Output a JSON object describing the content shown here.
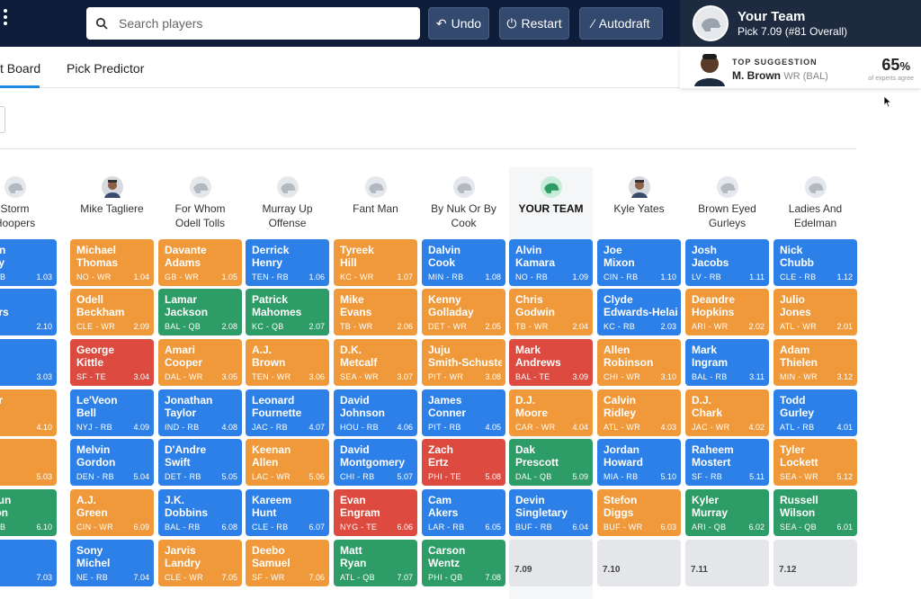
{
  "search": {
    "placeholder": "Search players"
  },
  "toolbar": {
    "undo": "Undo",
    "restart": "Restart",
    "autodraft": "Autodraft"
  },
  "my_team": {
    "title": "Your Team",
    "subtitle": "Pick 7.09 (#81 Overall)"
  },
  "tabs": [
    "t Board",
    "Pick Predictor"
  ],
  "suggestion": {
    "label": "TOP SUGGESTION",
    "name": "M. Brown",
    "pos": "WR (BAL)",
    "pct": "65",
    "pct_sym": "%",
    "agree": "of experts agree"
  },
  "colors": {
    "RB": "#2d80e8",
    "WR": "#f0993a",
    "QB": "#2e9c66",
    "TE": "#dd4a40"
  },
  "teams": [
    {
      "name1": "Storm",
      "name2": "Hoopers",
      "icon": "helmet"
    },
    {
      "name1": "Mike Tagliere",
      "name2": "",
      "icon": "person"
    },
    {
      "name1": "For Whom",
      "name2": "Odell Tolls",
      "icon": "helmet"
    },
    {
      "name1": "Murray Up",
      "name2": "Offense",
      "icon": "helmet"
    },
    {
      "name1": "Fant Man",
      "name2": "",
      "icon": "helmet"
    },
    {
      "name1": "By Nuk Or By",
      "name2": "Cook",
      "icon": "helmet"
    },
    {
      "name1": "YOUR TEAM",
      "name2": "",
      "icon": "myteam"
    },
    {
      "name1": "Kyle Yates",
      "name2": "",
      "icon": "person"
    },
    {
      "name1": "Brown Eyed",
      "name2": "Gurleys",
      "icon": "helmet"
    },
    {
      "name1": "Ladies And",
      "name2": "Edelman",
      "icon": "helmet"
    }
  ],
  "picks": [
    [
      [
        "quon",
        "rkley",
        "G - RB",
        "1.03",
        "RB"
      ],
      [
        "Michael",
        "Thomas",
        "NO - WR",
        "1.04",
        "WR"
      ],
      [
        "Davante",
        "Adams",
        "GB - WR",
        "1.05",
        "WR"
      ],
      [
        "Derrick",
        "Henry",
        "TEN - RB",
        "1.06",
        "RB"
      ],
      [
        "Tyreek",
        "Hill",
        "KC - WR",
        "1.07",
        "WR"
      ],
      [
        "Dalvin",
        "Cook",
        "MIN - RB",
        "1.08",
        "RB"
      ],
      [
        "Alvin",
        "Kamara",
        "NO - RB",
        "1.09",
        "RB"
      ],
      [
        "Joe",
        "Mixon",
        "CIN - RB",
        "1.10",
        "RB"
      ],
      [
        "Josh",
        "Jacobs",
        "LV - RB",
        "1.11",
        "RB"
      ],
      [
        "Nick",
        "Chubb",
        "CLE - RB",
        "1.12",
        "RB"
      ]
    ],
    [
      [
        "les",
        "nders",
        "",
        "2.10",
        "RB"
      ],
      [
        "Odell",
        "Beckham",
        "CLE - WR",
        "2.09",
        "WR"
      ],
      [
        "Lamar",
        "Jackson",
        "BAL - QB",
        "2.08",
        "QB"
      ],
      [
        "Patrick",
        "Mahomes",
        "KC - QB",
        "2.07",
        "QB"
      ],
      [
        "Mike",
        "Evans",
        "TB - WR",
        "2.06",
        "WR"
      ],
      [
        "Kenny",
        "Golladay",
        "DET - WR",
        "2.05",
        "WR"
      ],
      [
        "Chris",
        "Godwin",
        "TB - WR",
        "2.04",
        "WR"
      ],
      [
        "Clyde",
        "Edwards-Helaire",
        "KC - RB",
        "2.03",
        "RB"
      ],
      [
        "Deandre",
        "Hopkins",
        "ARI - WR",
        "2.02",
        "WR"
      ],
      [
        "Julio",
        "Jones",
        "ATL - WR",
        "2.01",
        "WR"
      ]
    ],
    [
      [
        "stin",
        "eler",
        "",
        "3.03",
        "RB"
      ],
      [
        "George",
        "Kittle",
        "SF - TE",
        "3.04",
        "TE"
      ],
      [
        "Amari",
        "Cooper",
        "DAL - WR",
        "3.05",
        "WR"
      ],
      [
        "A.J.",
        "Brown",
        "TEN - WR",
        "3.06",
        "WR"
      ],
      [
        "D.K.",
        "Metcalf",
        "SEA - WR",
        "3.07",
        "WR"
      ],
      [
        "Juju",
        "Smith-Schuster",
        "PIT - WR",
        "3.08",
        "WR"
      ],
      [
        "Mark",
        "Andrews",
        "BAL - TE",
        "3.09",
        "TE"
      ],
      [
        "Allen",
        "Robinson",
        "CHI - WR",
        "3.10",
        "WR"
      ],
      [
        "Mark",
        "Ingram",
        "BAL - RB",
        "3.11",
        "RB"
      ],
      [
        "Adam",
        "Thielen",
        "MIN - WR",
        "3.12",
        "WR"
      ]
    ],
    [
      [
        "oper",
        "upp",
        "",
        "4.10",
        "WR"
      ],
      [
        "Le'Veon",
        "Bell",
        "NYJ - RB",
        "4.09",
        "RB"
      ],
      [
        "Jonathan",
        "Taylor",
        "IND - RB",
        "4.08",
        "RB"
      ],
      [
        "Leonard",
        "Fournette",
        "JAC - RB",
        "4.07",
        "RB"
      ],
      [
        "David",
        "Johnson",
        "HOU - RB",
        "4.06",
        "RB"
      ],
      [
        "James",
        "Conner",
        "PIT - RB",
        "4.05",
        "RB"
      ],
      [
        "D.J.",
        "Moore",
        "CAR - WR",
        "4.04",
        "WR"
      ],
      [
        "Calvin",
        "Ridley",
        "ATL - WR",
        "4.03",
        "WR"
      ],
      [
        "D.J.",
        "Chark",
        "JAC - WR",
        "4.02",
        "WR"
      ],
      [
        "Todd",
        "Gurley",
        "ATL - RB",
        "4.01",
        "RB"
      ]
    ],
    [
      [
        "'.",
        "ton",
        "",
        "5.03",
        "WR"
      ],
      [
        "Melvin",
        "Gordon",
        "DEN - RB",
        "5.04",
        "RB"
      ],
      [
        "D'Andre",
        "Swift",
        "DET - RB",
        "5.05",
        "RB"
      ],
      [
        "Keenan",
        "Allen",
        "LAC - WR",
        "5.06",
        "WR"
      ],
      [
        "David",
        "Montgomery",
        "CHI - RB",
        "5.07",
        "RB"
      ],
      [
        "Zach",
        "Ertz",
        "PHI - TE",
        "5.08",
        "TE"
      ],
      [
        "Dak",
        "Prescott",
        "DAL - QB",
        "5.09",
        "QB"
      ],
      [
        "Jordan",
        "Howard",
        "MIA - RB",
        "5.10",
        "RB"
      ],
      [
        "Raheem",
        "Mostert",
        "SF - RB",
        "5.11",
        "RB"
      ],
      [
        "Tyler",
        "Lockett",
        "SEA - WR",
        "5.12",
        "WR"
      ]
    ],
    [
      [
        "shaun",
        "atson",
        "U - QB",
        "6.10",
        "QB"
      ],
      [
        "A.J.",
        "Green",
        "CIN - WR",
        "6.09",
        "WR"
      ],
      [
        "J.K.",
        "Dobbins",
        "BAL - RB",
        "6.08",
        "RB"
      ],
      [
        "Kareem",
        "Hunt",
        "CLE - RB",
        "6.07",
        "RB"
      ],
      [
        "Evan",
        "Engram",
        "NYG - TE",
        "6.06",
        "TE"
      ],
      [
        "Cam",
        "Akers",
        "LAR - RB",
        "6.05",
        "RB"
      ],
      [
        "Devin",
        "Singletary",
        "BUF - RB",
        "6.04",
        "RB"
      ],
      [
        "Stefon",
        "Diggs",
        "BUF - WR",
        "6.03",
        "WR"
      ],
      [
        "Kyler",
        "Murray",
        "ARI - QB",
        "6.02",
        "QB"
      ],
      [
        "Russell",
        "Wilson",
        "SEA - QB",
        "6.01",
        "QB"
      ]
    ],
    [
      [
        "rlon",
        "ack",
        "",
        "7.03",
        "RB"
      ],
      [
        "Sony",
        "Michel",
        "NE - RB",
        "7.04",
        "RB"
      ],
      [
        "Jarvis",
        "Landry",
        "CLE - WR",
        "7.05",
        "WR"
      ],
      [
        "Deebo",
        "Samuel",
        "SF - WR",
        "7.06",
        "WR"
      ],
      [
        "Matt",
        "Ryan",
        "ATL - QB",
        "7.07",
        "QB"
      ],
      [
        "Carson",
        "Wentz",
        "PHI - QB",
        "7.08",
        "QB"
      ],
      [
        "",
        "",
        "",
        "7.09",
        "EMPTY"
      ],
      [
        "",
        "",
        "",
        "7.10",
        "EMPTY"
      ],
      [
        "",
        "",
        "",
        "7.11",
        "EMPTY"
      ],
      [
        "",
        "",
        "",
        "7.12",
        "EMPTY"
      ]
    ]
  ]
}
